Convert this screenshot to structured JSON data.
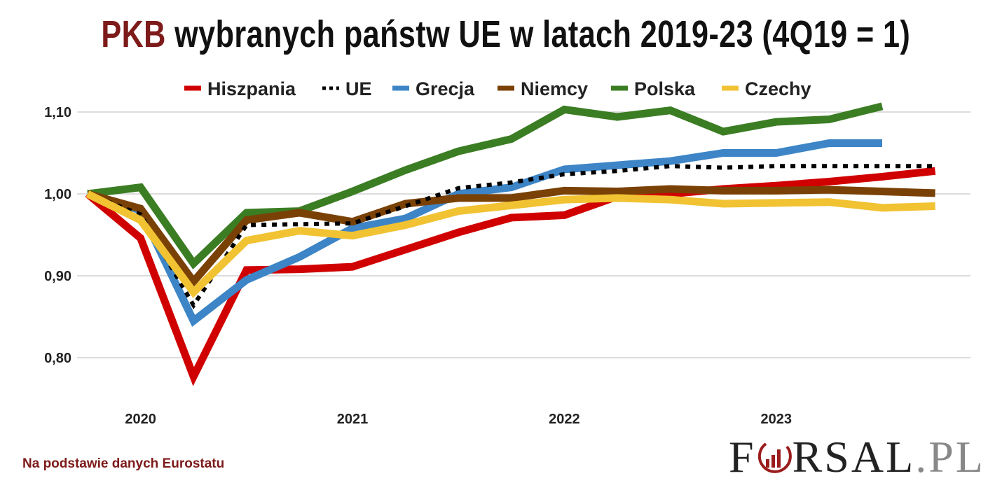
{
  "title": {
    "highlight": "PKB",
    "rest": " wybranych państw UE w latach 2019-23 (4Q19 = 1)"
  },
  "source": "Na podstawie danych Eurostatu",
  "logo": {
    "text_before": "F",
    "text_after": "RSAL",
    "suffix": ".PL",
    "full": "FORSAL.PL"
  },
  "chart_data": {
    "type": "line",
    "title": "PKB wybranych państw UE w latach 2019-23 (4Q19 = 1)",
    "xlabel": "",
    "ylabel": "",
    "x": [
      "4Q19",
      "1Q20",
      "2Q20",
      "3Q20",
      "4Q20",
      "1Q21",
      "2Q21",
      "3Q21",
      "4Q21",
      "1Q22",
      "2Q22",
      "3Q22",
      "4Q22",
      "1Q23",
      "2Q23",
      "3Q23",
      "4Q23"
    ],
    "x_tick_labels": [
      {
        "at": "1Q20",
        "label": "2020"
      },
      {
        "at": "1Q21",
        "label": "2021"
      },
      {
        "at": "1Q22",
        "label": "2022"
      },
      {
        "at": "1Q23",
        "label": "2023"
      }
    ],
    "y_ticks": [
      0.8,
      0.9,
      1.0,
      1.1
    ],
    "y_tick_labels": [
      "0,80",
      "0,90",
      "1,00",
      "1,10"
    ],
    "ylim": [
      0.76,
      1.12
    ],
    "grid": true,
    "legend_position": "top",
    "series": [
      {
        "name": "Hiszpania",
        "color": "#d00000",
        "dash": false,
        "values": [
          1.0,
          0.946,
          0.777,
          0.907,
          0.908,
          0.911,
          0.932,
          0.953,
          0.971,
          0.974,
          0.997,
          1.0,
          1.006,
          1.01,
          1.015,
          1.021,
          1.028
        ]
      },
      {
        "name": "UE",
        "color": "#000000",
        "dash": true,
        "values": [
          1.0,
          0.975,
          0.864,
          0.962,
          0.963,
          0.964,
          0.985,
          1.007,
          1.014,
          1.024,
          1.028,
          1.034,
          1.032,
          1.034,
          1.034,
          1.034,
          1.034
        ]
      },
      {
        "name": "Grecja",
        "color": "#3d85c6",
        "dash": false,
        "values": [
          1.0,
          0.98,
          0.845,
          0.895,
          0.923,
          0.958,
          0.97,
          1.0,
          1.008,
          1.03,
          1.035,
          1.04,
          1.05,
          1.05,
          1.062,
          1.062,
          null
        ]
      },
      {
        "name": "Niemcy",
        "color": "#7a4106",
        "dash": false,
        "values": [
          1.0,
          0.982,
          0.893,
          0.968,
          0.977,
          0.966,
          0.988,
          0.995,
          0.995,
          1.004,
          1.003,
          1.006,
          1.004,
          1.004,
          1.005,
          1.003,
          1.001
        ]
      },
      {
        "name": "Polska",
        "color": "#3b7d23",
        "dash": false,
        "values": [
          1.0,
          1.008,
          0.915,
          0.977,
          0.979,
          1.003,
          1.029,
          1.052,
          1.067,
          1.103,
          1.094,
          1.102,
          1.076,
          1.088,
          1.091,
          1.107,
          null
        ]
      },
      {
        "name": "Czechy",
        "color": "#f1c232",
        "dash": false,
        "values": [
          1.0,
          0.968,
          0.88,
          0.943,
          0.955,
          0.949,
          0.962,
          0.979,
          0.986,
          0.993,
          0.995,
          0.993,
          0.988,
          0.989,
          0.99,
          0.983,
          0.985
        ]
      }
    ]
  }
}
